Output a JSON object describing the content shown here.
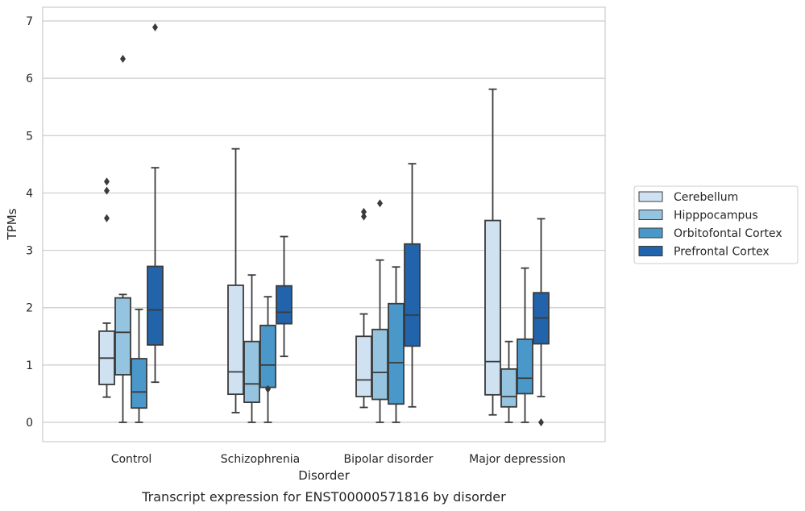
{
  "chart_data": {
    "type": "box",
    "caption": "Transcript expression for ENST00000571816 by disorder",
    "xlabel": "Disorder",
    "ylabel": "TPMs",
    "ylim": [
      -0.33,
      7.25
    ],
    "yticks": [
      0,
      1,
      2,
      3,
      4,
      5,
      6,
      7
    ],
    "grid": "horizontal",
    "legend_position": "right",
    "categories": [
      "Control",
      "Schizophrenia",
      "Bipolar disorder",
      "Major depression"
    ],
    "series": [
      {
        "name": "Cerebellum",
        "color": "#d0e1f2",
        "boxes": [
          {
            "whislo": 0.44,
            "q1": 0.66,
            "med": 1.12,
            "q3": 1.59,
            "whishi": 1.73,
            "fliers": [
              3.56,
              4.04,
              4.2
            ]
          },
          {
            "whislo": 0.17,
            "q1": 0.49,
            "med": 0.88,
            "q3": 2.39,
            "whishi": 4.77,
            "fliers": []
          },
          {
            "whislo": 0.26,
            "q1": 0.45,
            "med": 0.74,
            "q3": 1.5,
            "whishi": 1.89,
            "fliers": [
              3.59,
              3.67
            ]
          },
          {
            "whislo": 0.13,
            "q1": 0.48,
            "med": 1.06,
            "q3": 3.52,
            "whishi": 5.81,
            "fliers": []
          }
        ]
      },
      {
        "name": "Hipppocampus",
        "color": "#94c4df",
        "boxes": [
          {
            "whislo": 0.0,
            "q1": 0.83,
            "med": 1.57,
            "q3": 2.17,
            "whishi": 2.23,
            "fliers": [
              6.34
            ]
          },
          {
            "whislo": 0.0,
            "q1": 0.35,
            "med": 0.67,
            "q3": 1.41,
            "whishi": 2.57,
            "fliers": []
          },
          {
            "whislo": 0.0,
            "q1": 0.4,
            "med": 0.87,
            "q3": 1.62,
            "whishi": 2.83,
            "fliers": [
              3.82
            ]
          },
          {
            "whislo": 0.0,
            "q1": 0.27,
            "med": 0.45,
            "q3": 0.93,
            "whishi": 1.41,
            "fliers": []
          }
        ]
      },
      {
        "name": "Orbitofontal Cortex",
        "color": "#4a98c9",
        "boxes": [
          {
            "whislo": 0.0,
            "q1": 0.25,
            "med": 0.53,
            "q3": 1.11,
            "whishi": 1.97,
            "fliers": []
          },
          {
            "whislo": 0.0,
            "q1": 0.61,
            "med": 1.0,
            "q3": 1.69,
            "whishi": 2.19,
            "fliers": [
              0.58
            ]
          },
          {
            "whislo": 0.0,
            "q1": 0.32,
            "med": 1.04,
            "q3": 2.07,
            "whishi": 2.71,
            "fliers": []
          },
          {
            "whislo": 0.0,
            "q1": 0.5,
            "med": 0.77,
            "q3": 1.45,
            "whishi": 2.69,
            "fliers": []
          }
        ]
      },
      {
        "name": "Prefrontal Cortex",
        "color": "#2164ab",
        "boxes": [
          {
            "whislo": 0.7,
            "q1": 1.35,
            "med": 1.96,
            "q3": 2.72,
            "whishi": 4.44,
            "fliers": [
              6.89
            ]
          },
          {
            "whislo": 1.15,
            "q1": 1.72,
            "med": 1.92,
            "q3": 2.38,
            "whishi": 3.24,
            "fliers": []
          },
          {
            "whislo": 0.27,
            "q1": 1.33,
            "med": 1.87,
            "q3": 3.11,
            "whishi": 4.51,
            "fliers": []
          },
          {
            "whislo": 0.45,
            "q1": 1.37,
            "med": 1.82,
            "q3": 2.26,
            "whishi": 3.55,
            "fliers": [
              0.0
            ]
          }
        ]
      }
    ]
  }
}
